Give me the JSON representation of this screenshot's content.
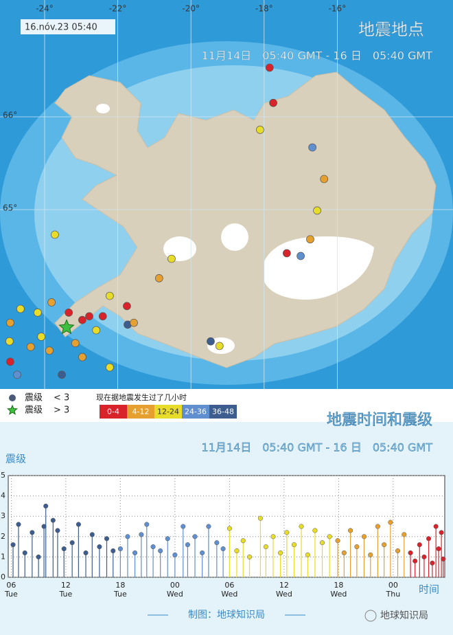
{
  "map": {
    "title": "地震地点",
    "subtitle": "11月14日　05:40 GMT - 16 日　05:40 GMT",
    "timestamp": "16.nóv.23 05:40",
    "lon_ticks": [
      {
        "value": -24,
        "label": "-24°"
      },
      {
        "value": -22,
        "label": "-22°"
      },
      {
        "value": -20,
        "label": "-20°"
      },
      {
        "value": -18,
        "label": "-18°"
      },
      {
        "value": -16,
        "label": "-16°"
      }
    ],
    "lat_ticks": [
      {
        "value": 66,
        "label": "66°"
      },
      {
        "value": 65,
        "label": "65°"
      }
    ],
    "star_color": "#3fbf3f",
    "quakes": [
      {
        "lon": -17.85,
        "lat": 66.53,
        "series": 0,
        "over3": false
      },
      {
        "lon": -17.75,
        "lat": 66.15,
        "series": 0,
        "over3": false
      },
      {
        "lon": -18.11,
        "lat": 65.86,
        "series": 2,
        "over3": false
      },
      {
        "lon": -16.68,
        "lat": 65.67,
        "series": 3,
        "over3": false
      },
      {
        "lon": -16.36,
        "lat": 65.33,
        "series": 1,
        "over3": false
      },
      {
        "lon": -16.55,
        "lat": 64.99,
        "series": 2,
        "over3": false
      },
      {
        "lon": -16.74,
        "lat": 64.68,
        "series": 1,
        "over3": false
      },
      {
        "lon": -17.38,
        "lat": 64.53,
        "series": 0,
        "over3": false
      },
      {
        "lon": -17.0,
        "lat": 64.5,
        "series": 3,
        "over3": false
      },
      {
        "lon": -20.53,
        "lat": 64.47,
        "series": 2,
        "over3": false
      },
      {
        "lon": -20.87,
        "lat": 64.26,
        "series": 1,
        "over3": false
      },
      {
        "lon": -23.72,
        "lat": 64.73,
        "series": 2,
        "over3": false
      },
      {
        "lon": -19.22,
        "lat": 63.53,
        "series": 2,
        "over3": false
      },
      {
        "lon": -19.46,
        "lat": 63.58,
        "series": 4,
        "over3": false
      },
      {
        "lon": -24.94,
        "lat": 63.78,
        "series": 1,
        "over3": false
      },
      {
        "lon": -24.66,
        "lat": 63.93,
        "series": 2,
        "over3": false
      },
      {
        "lon": -24.96,
        "lat": 63.58,
        "series": 2,
        "over3": false
      },
      {
        "lon": -24.94,
        "lat": 63.36,
        "series": 0,
        "over3": false
      },
      {
        "lon": -24.38,
        "lat": 63.52,
        "series": 1,
        "over3": false
      },
      {
        "lon": -24.09,
        "lat": 63.63,
        "series": 2,
        "over3": false
      },
      {
        "lon": -23.87,
        "lat": 63.48,
        "series": 1,
        "over3": false
      },
      {
        "lon": -23.34,
        "lat": 63.89,
        "series": 0,
        "over3": false
      },
      {
        "lon": -22.97,
        "lat": 63.81,
        "series": 0,
        "over3": false
      },
      {
        "lon": -22.78,
        "lat": 63.85,
        "series": 0,
        "over3": false
      },
      {
        "lon": -22.41,
        "lat": 63.85,
        "series": 0,
        "over3": false
      },
      {
        "lon": -22.22,
        "lat": 64.07,
        "series": 2,
        "over3": false
      },
      {
        "lon": -21.75,
        "lat": 63.96,
        "series": 0,
        "over3": false
      },
      {
        "lon": -21.73,
        "lat": 63.76,
        "series": 4,
        "over3": false
      },
      {
        "lon": -23.16,
        "lat": 63.56,
        "series": 1,
        "over3": false
      },
      {
        "lon": -22.97,
        "lat": 63.41,
        "series": 1,
        "over3": false
      },
      {
        "lon": -23.53,
        "lat": 63.22,
        "series": 4,
        "over3": false
      },
      {
        "lon": -24.75,
        "lat": 63.22,
        "series": 3,
        "over3": false
      },
      {
        "lon": -22.22,
        "lat": 63.3,
        "series": 2,
        "over3": false
      },
      {
        "lon": -22.59,
        "lat": 63.7,
        "series": 2,
        "over3": false
      },
      {
        "lon": -21.56,
        "lat": 63.78,
        "series": 1,
        "over3": false
      },
      {
        "lon": -23.81,
        "lat": 64.0,
        "series": 1,
        "over3": false
      },
      {
        "lon": -24.19,
        "lat": 63.89,
        "series": 2,
        "over3": false
      },
      {
        "lon": -23.4,
        "lat": 63.73,
        "series": 4,
        "over3": true
      }
    ],
    "legend": {
      "size": [
        {
          "label": "震级",
          "range": "< 3"
        },
        {
          "label": "震级",
          "range": "> 3"
        }
      ],
      "age_title": "现在据地震发生过了几小时"
    }
  },
  "chart_data": {
    "type": "stem",
    "title": "地震时间和震级",
    "subtitle": "11月14日　05:40 GMT - 16 日　05:40 GMT",
    "y_label": "震级",
    "x_label": "时间",
    "xlim": [
      5.67,
      53.67
    ],
    "ylim": [
      0,
      5
    ],
    "yticks": [
      0,
      1,
      2,
      3,
      4,
      5
    ],
    "grid": true,
    "xticks": [
      {
        "value": 6,
        "label": "06\nTue"
      },
      {
        "value": 12,
        "label": "12\nTue"
      },
      {
        "value": 18,
        "label": "18\nTue"
      },
      {
        "value": 24,
        "label": "00\nWed"
      },
      {
        "value": 30,
        "label": "06\nWed"
      },
      {
        "value": 36,
        "label": "12\nWed"
      },
      {
        "value": 42,
        "label": "18\nWed"
      },
      {
        "value": 48,
        "label": "00\nThu"
      }
    ],
    "series": [
      {
        "name": "0-4",
        "color": "#d8232a",
        "x": [
          49.9,
          50.4,
          50.9,
          51.4,
          51.9,
          52.3,
          52.7,
          53.0,
          53.3,
          53.5
        ],
        "values": [
          1.2,
          0.8,
          1.6,
          1.0,
          1.9,
          0.7,
          2.5,
          1.4,
          2.2,
          0.9
        ]
      },
      {
        "name": "4-12",
        "color": "#e5a030",
        "x": [
          41.9,
          42.6,
          43.3,
          44.0,
          44.8,
          45.5,
          46.3,
          47.0,
          47.7,
          48.5,
          49.2
        ],
        "values": [
          1.8,
          1.2,
          2.3,
          1.5,
          2.0,
          1.1,
          2.5,
          1.6,
          2.7,
          1.3,
          2.1
        ]
      },
      {
        "name": "12-24",
        "color": "#e8dc2a",
        "x": [
          30.0,
          30.8,
          31.5,
          32.2,
          33.4,
          34.0,
          34.8,
          35.6,
          36.3,
          37.1,
          37.9,
          38.6,
          39.4,
          40.2,
          41.0
        ],
        "values": [
          2.4,
          1.3,
          1.8,
          1.0,
          2.9,
          1.5,
          2.0,
          1.2,
          2.2,
          1.6,
          2.5,
          1.1,
          2.3,
          1.7,
          2.0
        ]
      },
      {
        "name": "24-36",
        "color": "#5f8fcf",
        "x": [
          18.0,
          18.8,
          19.6,
          20.3,
          20.9,
          21.6,
          22.4,
          23.2,
          24.0,
          24.9,
          25.4,
          26.2,
          27.0,
          27.7,
          28.6,
          29.3
        ],
        "values": [
          1.4,
          2.0,
          1.2,
          2.1,
          2.6,
          1.5,
          1.3,
          1.9,
          1.1,
          2.5,
          1.6,
          2.0,
          1.2,
          2.5,
          1.7,
          1.4
        ]
      },
      {
        "name": "36-48",
        "color": "#3d5d8f",
        "x": [
          6.2,
          6.8,
          7.5,
          8.3,
          9.0,
          9.6,
          9.8,
          10.6,
          11.1,
          11.8,
          12.7,
          13.4,
          14.2,
          14.9,
          15.7,
          16.5,
          17.2
        ],
        "values": [
          1.6,
          2.6,
          1.2,
          2.2,
          1.0,
          2.5,
          3.5,
          2.8,
          2.3,
          1.4,
          1.7,
          2.6,
          1.2,
          2.1,
          1.5,
          1.9,
          1.3
        ]
      }
    ]
  },
  "credit": "制图：地球知识局",
  "watermark": "地球知识局"
}
